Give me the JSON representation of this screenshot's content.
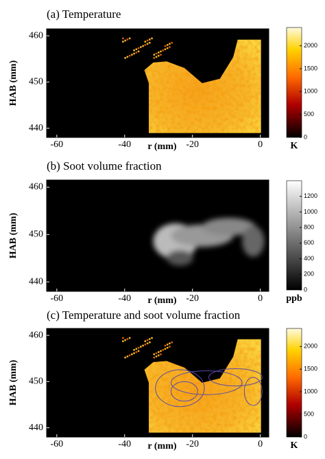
{
  "chart_data": [
    {
      "type": "heatmap",
      "title": "(a) Temperature",
      "xlabel": "r (mm)",
      "ylabel": "HAB (mm)",
      "xlim": [
        -63,
        2.5
      ],
      "xticks": [
        -60,
        -40,
        -20,
        0
      ],
      "ylim": [
        438,
        461.5
      ],
      "yticks": [
        440,
        450,
        460
      ],
      "colormap": "hot",
      "clim": [
        0,
        2400
      ],
      "cticks": [
        0,
        500,
        1000,
        1500,
        2000
      ],
      "colorbar_label": "K"
    },
    {
      "type": "heatmap",
      "title": "(b) Soot volume fraction",
      "xlabel": "r (mm)",
      "ylabel": "HAB (mm)",
      "xlim": [
        -63,
        2.5
      ],
      "xticks": [
        -60,
        -40,
        -20,
        0
      ],
      "ylim": [
        438,
        461.5
      ],
      "yticks": [
        440,
        450,
        460
      ],
      "colormap": "gray",
      "clim": [
        0,
        1400
      ],
      "cticks": [
        0,
        200,
        400,
        600,
        800,
        1000,
        1200
      ],
      "colorbar_label": "ppb"
    },
    {
      "type": "heatmap",
      "title": "(c) Temperature and soot volume fraction",
      "xlabel": "r (mm)",
      "ylabel": "HAB (mm)",
      "xlim": [
        -63,
        2.5
      ],
      "xticks": [
        -60,
        -40,
        -20,
        0
      ],
      "ylim": [
        438,
        461.5
      ],
      "yticks": [
        440,
        450,
        460
      ],
      "colormap": "hot",
      "clim": [
        0,
        2400
      ],
      "cticks": [
        0,
        500,
        1000,
        1500,
        2000
      ],
      "colorbar_label": "K"
    }
  ]
}
